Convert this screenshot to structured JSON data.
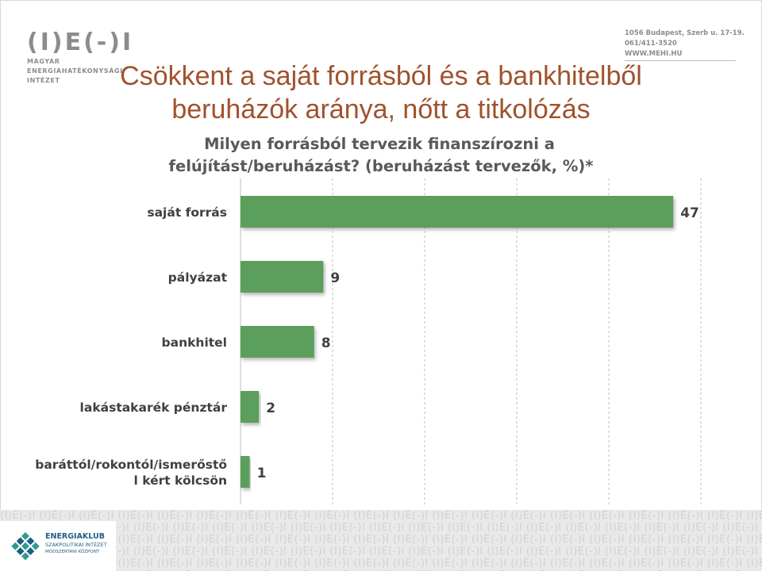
{
  "header": {
    "logo_mark": "(I)E(-)I",
    "logo_lines": [
      "MAGYAR",
      "ENERGIAHATÉKONYSÁGI",
      "INTÉZET"
    ],
    "contact_lines": [
      "1056 Budapest, Szerb u. 17-19.",
      "061/411-3520",
      "WWW.MEHI.HU"
    ]
  },
  "title": {
    "line1": "Csökkent a saját forrásból és a bankhitelből",
    "line2": "beruházók aránya, nőtt a titkolózás"
  },
  "question": {
    "line1": "Milyen forrásból tervezik finanszírozni a",
    "line2": "felújítást/beruházást? (beruházást tervezők, %)*"
  },
  "chart_data": {
    "type": "bar",
    "orientation": "horizontal",
    "categories": [
      "saját forrás",
      "pályázat",
      "bankhitel",
      "lakástakarék pénztár",
      "baráttól/rokontól/ismerőstő l kért kölcsön"
    ],
    "category_lines": [
      [
        "saját forrás"
      ],
      [
        "pályázat"
      ],
      [
        "bankhitel"
      ],
      [
        "lakástakarék pénztár"
      ],
      [
        "baráttól/rokontól/ismerőstő",
        "l kért kölcsön"
      ]
    ],
    "values": [
      47,
      9,
      8,
      2,
      1
    ],
    "data_labels": [
      "47",
      "9",
      "8",
      "2",
      "1"
    ],
    "xlim": [
      0,
      50
    ],
    "x_ticks": [
      0,
      10,
      20,
      30,
      40,
      50
    ],
    "x_tick_labels": [
      "",
      "",
      "",
      "",
      "",
      ""
    ],
    "grid": "vertical-dashed",
    "bar_color": "#5c9e5c"
  },
  "footer": {
    "pattern_text": "(I)E(-)I",
    "org_name": "ENERGIAKLUB",
    "org_sub1": "SZAKPOLITIKAI INTÉZET",
    "org_sub2": "MÓDSZERTANI KÖZPONT"
  },
  "colors": {
    "title": "#a0522d",
    "question": "#595959",
    "bar": "#5c9e5c",
    "footer_band": "#e9e9e9"
  }
}
